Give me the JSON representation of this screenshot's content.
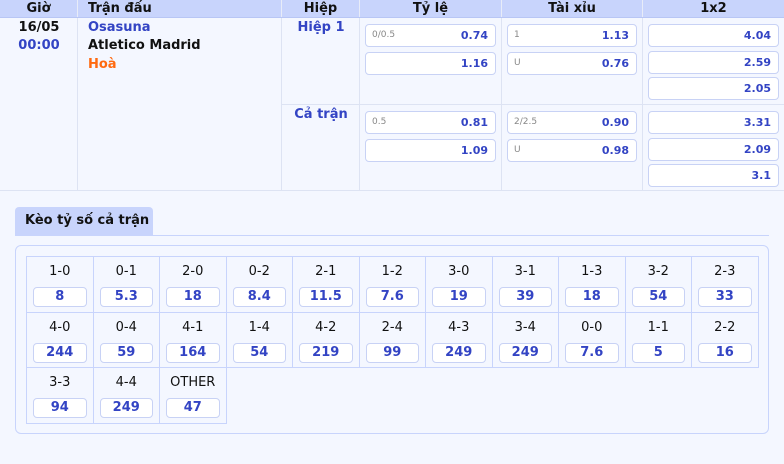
{
  "header": {
    "time": "Giờ",
    "match": "Trận đấu",
    "half": "Hiệp",
    "handicap": "Tỷ lệ",
    "overunder": "Tài xỉu",
    "x12": "1x2"
  },
  "match": {
    "date": "16/05",
    "time": "00:00",
    "home": "Osasuna",
    "away": "Atletico Madrid",
    "draw": "Hoà"
  },
  "periods": [
    {
      "label": "Hiệp 1",
      "handicap": {
        "line": "0/0.5",
        "home": "0.74",
        "away": "1.16"
      },
      "ou": {
        "line": "1",
        "over": "1.13",
        "under_label": "U",
        "under": "0.76"
      },
      "x12": [
        "4.04",
        "2.59",
        "2.05"
      ]
    },
    {
      "label": "Cả trận",
      "handicap": {
        "line": "0.5",
        "home": "0.81",
        "away": "1.09"
      },
      "ou": {
        "line": "2/2.5",
        "over": "0.90",
        "under_label": "U",
        "under": "0.98"
      },
      "x12": [
        "3.31",
        "2.09",
        "3.1"
      ]
    }
  ],
  "correct_score": {
    "tab": "Kèo tỷ số cả trận",
    "items": [
      {
        "score": "1-0",
        "odds": "8"
      },
      {
        "score": "0-1",
        "odds": "5.3"
      },
      {
        "score": "2-0",
        "odds": "18"
      },
      {
        "score": "0-2",
        "odds": "8.4"
      },
      {
        "score": "2-1",
        "odds": "11.5"
      },
      {
        "score": "1-2",
        "odds": "7.6"
      },
      {
        "score": "3-0",
        "odds": "19"
      },
      {
        "score": "3-1",
        "odds": "39"
      },
      {
        "score": "1-3",
        "odds": "18"
      },
      {
        "score": "3-2",
        "odds": "54"
      },
      {
        "score": "2-3",
        "odds": "33"
      },
      {
        "score": "4-0",
        "odds": "244"
      },
      {
        "score": "0-4",
        "odds": "59"
      },
      {
        "score": "4-1",
        "odds": "164"
      },
      {
        "score": "1-4",
        "odds": "54"
      },
      {
        "score": "4-2",
        "odds": "219"
      },
      {
        "score": "2-4",
        "odds": "99"
      },
      {
        "score": "4-3",
        "odds": "249"
      },
      {
        "score": "3-4",
        "odds": "249"
      },
      {
        "score": "0-0",
        "odds": "7.6"
      },
      {
        "score": "1-1",
        "odds": "5"
      },
      {
        "score": "2-2",
        "odds": "16"
      },
      {
        "score": "3-3",
        "odds": "94"
      },
      {
        "score": "4-4",
        "odds": "249"
      },
      {
        "score": "OTHER",
        "odds": "47"
      }
    ]
  }
}
